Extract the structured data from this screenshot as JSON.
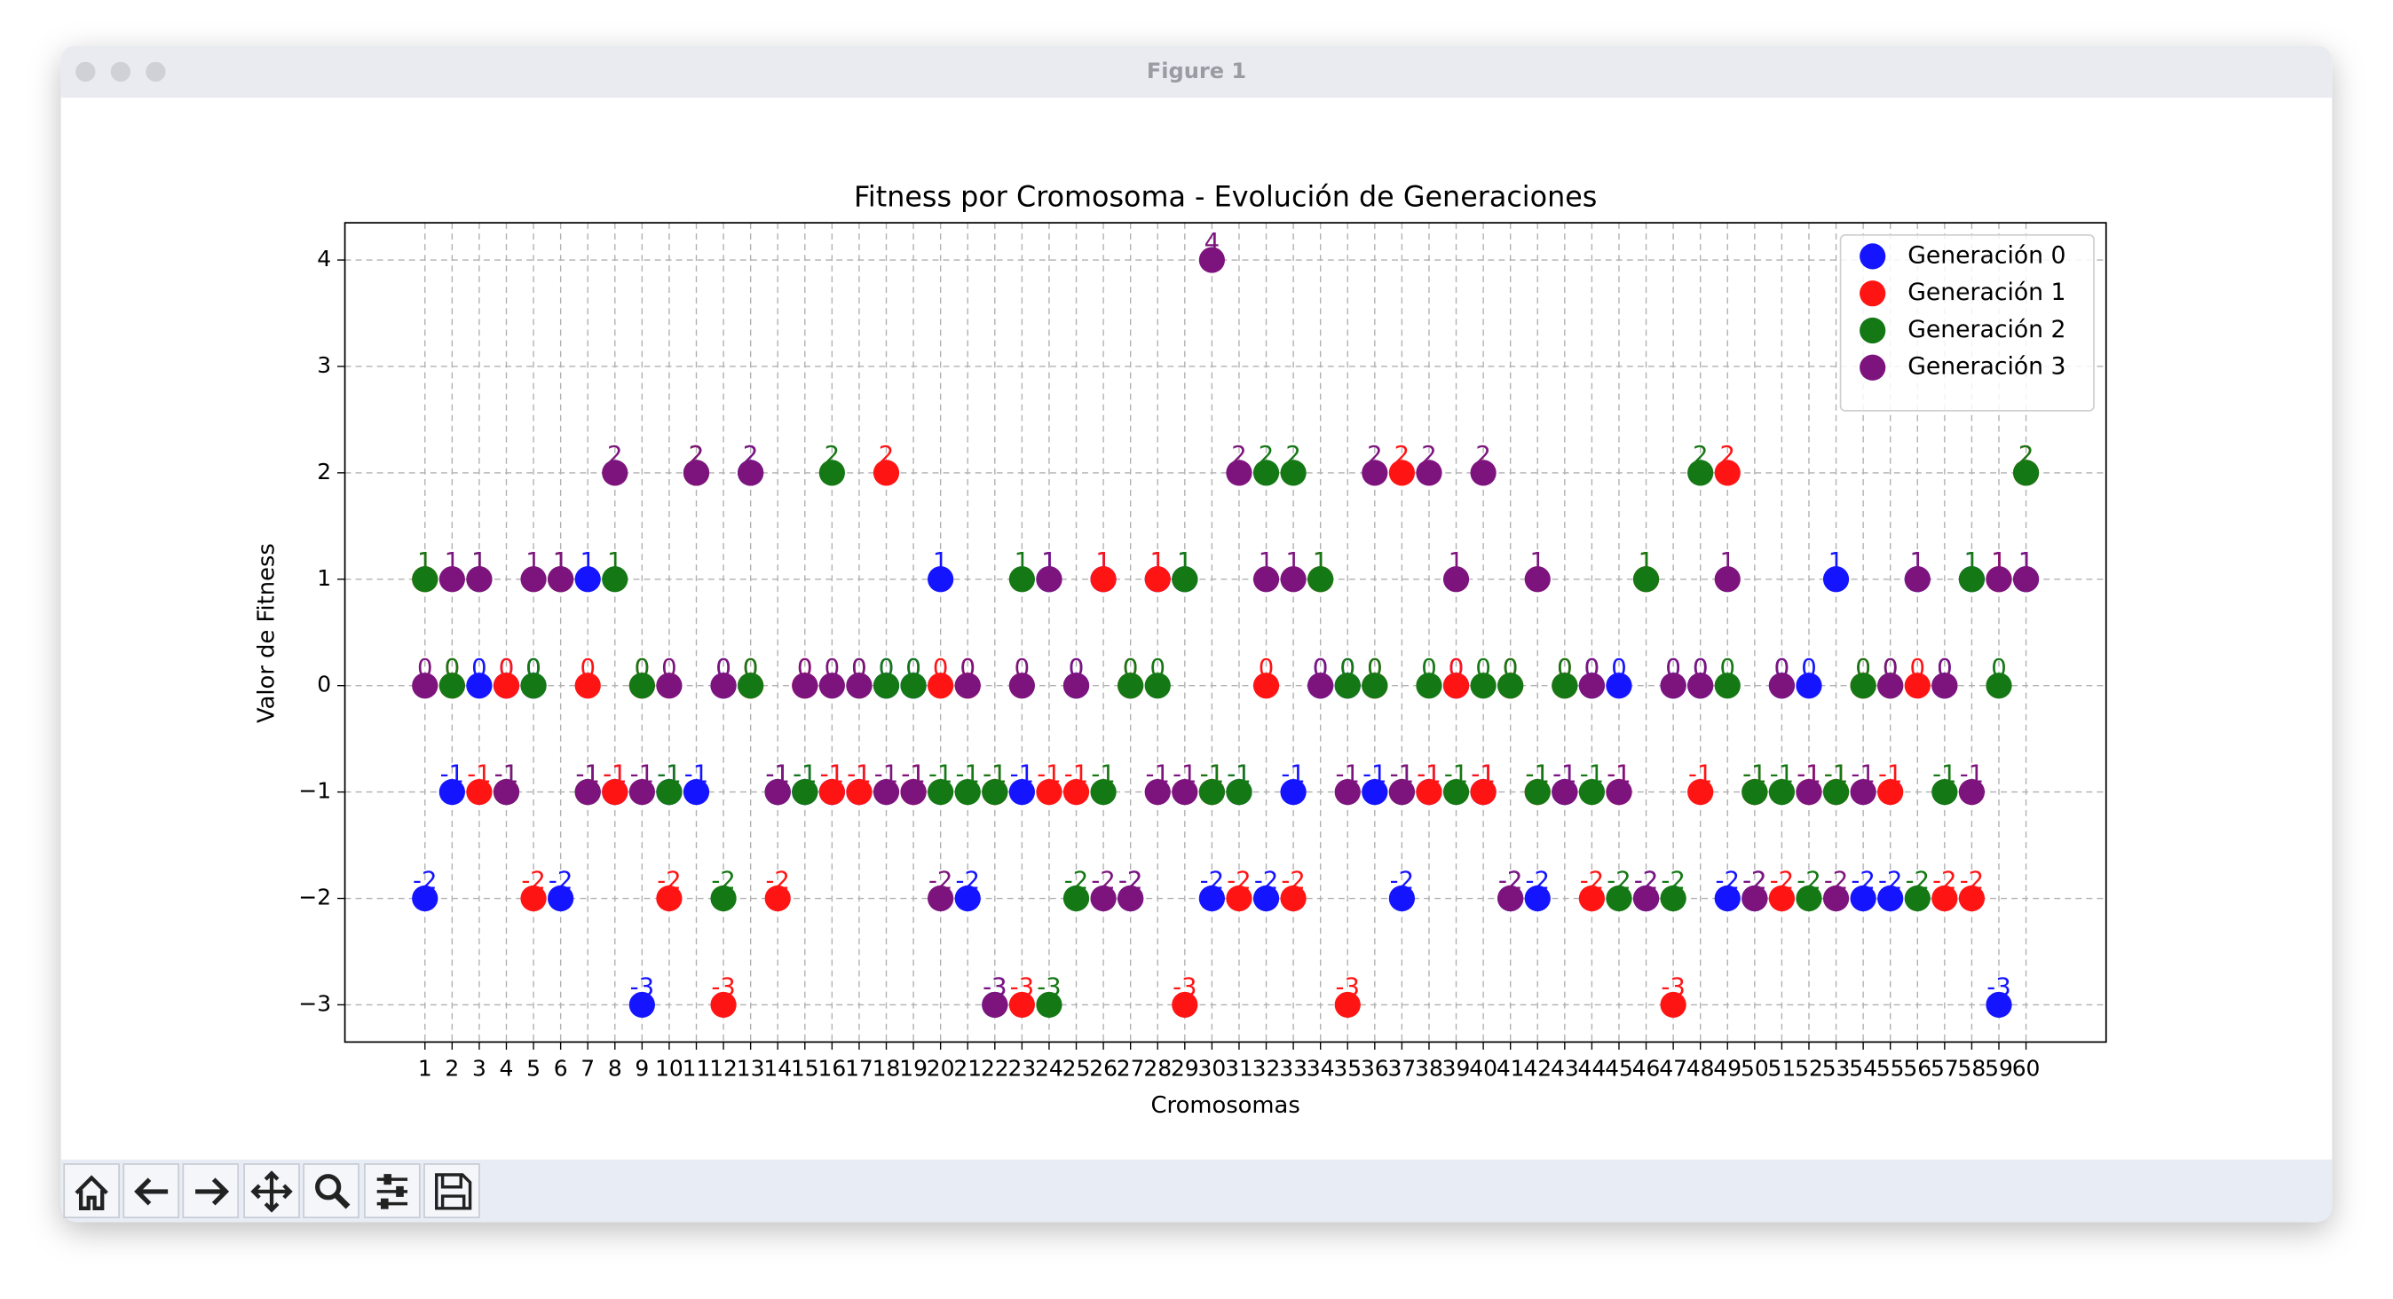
{
  "window_title": "Figure 1",
  "chart_data": {
    "type": "scatter",
    "title": "Fitness por Cromosoma - Evolución de Generaciones",
    "xlabel": "Cromosomas",
    "ylabel": "Valor de Fitness",
    "x": [
      1,
      2,
      3,
      4,
      5,
      6,
      7,
      8,
      9,
      10,
      11,
      12,
      13,
      14,
      15,
      16,
      17,
      18,
      19,
      20,
      21,
      22,
      23,
      24,
      25,
      26,
      27,
      28,
      29,
      30,
      31,
      32,
      33,
      34,
      35,
      36,
      37,
      38,
      39,
      40,
      41,
      42,
      43,
      44,
      45,
      46,
      47,
      48,
      49,
      50,
      51,
      52,
      53,
      54,
      55,
      56,
      57,
      58,
      59,
      60
    ],
    "series": [
      {
        "name": "Generación 0",
        "color": "#1414ff",
        "values": [
          -2,
          -1,
          0,
          0,
          0,
          -2,
          1,
          -1,
          -3,
          -1,
          -1,
          0,
          2,
          -1,
          -1,
          -1,
          -1,
          0,
          0,
          1,
          -2,
          -3,
          -1,
          1,
          0,
          1,
          -2,
          1,
          1,
          -2,
          -1,
          -2,
          -1,
          0,
          0,
          -1,
          -2,
          -1,
          0,
          -1,
          -2,
          -2,
          -1,
          0,
          0,
          -2,
          0,
          0,
          -2,
          -2,
          0,
          0,
          1,
          -2,
          -2,
          1,
          0,
          1,
          -3,
          1
        ]
      },
      {
        "name": "Generación 1",
        "color": "#ff1414",
        "values": [
          1,
          0,
          -1,
          0,
          -2,
          1,
          0,
          -1,
          0,
          -2,
          2,
          -3,
          0,
          -2,
          0,
          -1,
          -1,
          2,
          -1,
          0,
          0,
          -1,
          -3,
          -1,
          -1,
          1,
          0,
          1,
          -3,
          -1,
          -2,
          0,
          -2,
          1,
          -3,
          0,
          2,
          -1,
          0,
          -1,
          0,
          -1,
          0,
          -2,
          -1,
          1,
          -3,
          -1,
          2,
          -1,
          -2,
          -1,
          -1,
          0,
          -1,
          0,
          -2,
          -2,
          1,
          2
        ]
      },
      {
        "name": "Generación 2",
        "color": "#147814",
        "values": [
          1,
          0,
          1,
          -1,
          0,
          1,
          -1,
          1,
          0,
          -1,
          2,
          -2,
          0,
          -1,
          -1,
          2,
          0,
          0,
          0,
          -1,
          -1,
          -1,
          1,
          -3,
          -2,
          -1,
          0,
          0,
          1,
          -1,
          -1,
          2,
          2,
          1,
          0,
          0,
          -1,
          0,
          -1,
          0,
          0,
          -1,
          0,
          -1,
          -2,
          1,
          -2,
          2,
          0,
          -1,
          -1,
          -2,
          -1,
          0,
          0,
          -2,
          -1,
          1,
          0,
          2
        ]
      },
      {
        "name": "Generación 3",
        "color": "#7d147d",
        "values": [
          0,
          1,
          1,
          -1,
          1,
          1,
          -1,
          2,
          -1,
          0,
          2,
          0,
          2,
          -1,
          0,
          0,
          0,
          -1,
          -1,
          -2,
          0,
          -3,
          0,
          1,
          0,
          -2,
          -2,
          -1,
          -1,
          4,
          2,
          1,
          1,
          0,
          -1,
          2,
          -1,
          2,
          1,
          2,
          -2,
          1,
          -1,
          0,
          -1,
          -2,
          0,
          0,
          1,
          -2,
          0,
          -1,
          -2,
          -1,
          0,
          1,
          0,
          -1,
          1,
          1
        ]
      }
    ],
    "xlim": [
      -1.95,
      62.95
    ],
    "ylim": [
      -3.35,
      4.35
    ],
    "xticks": [
      1,
      2,
      3,
      4,
      5,
      6,
      7,
      8,
      9,
      10,
      11,
      12,
      13,
      14,
      15,
      16,
      17,
      18,
      19,
      20,
      21,
      22,
      23,
      24,
      25,
      26,
      27,
      28,
      29,
      30,
      31,
      32,
      33,
      34,
      35,
      36,
      37,
      38,
      39,
      40,
      41,
      42,
      43,
      44,
      45,
      46,
      47,
      48,
      49,
      50,
      51,
      52,
      53,
      54,
      55,
      56,
      57,
      58,
      59,
      60
    ],
    "yticks": [
      {
        "value": -3,
        "label": "−3"
      },
      {
        "value": -2,
        "label": "−2"
      },
      {
        "value": -1,
        "label": "−1"
      },
      0,
      1,
      2,
      3,
      4
    ],
    "grid": true,
    "legend": "upper right"
  }
}
